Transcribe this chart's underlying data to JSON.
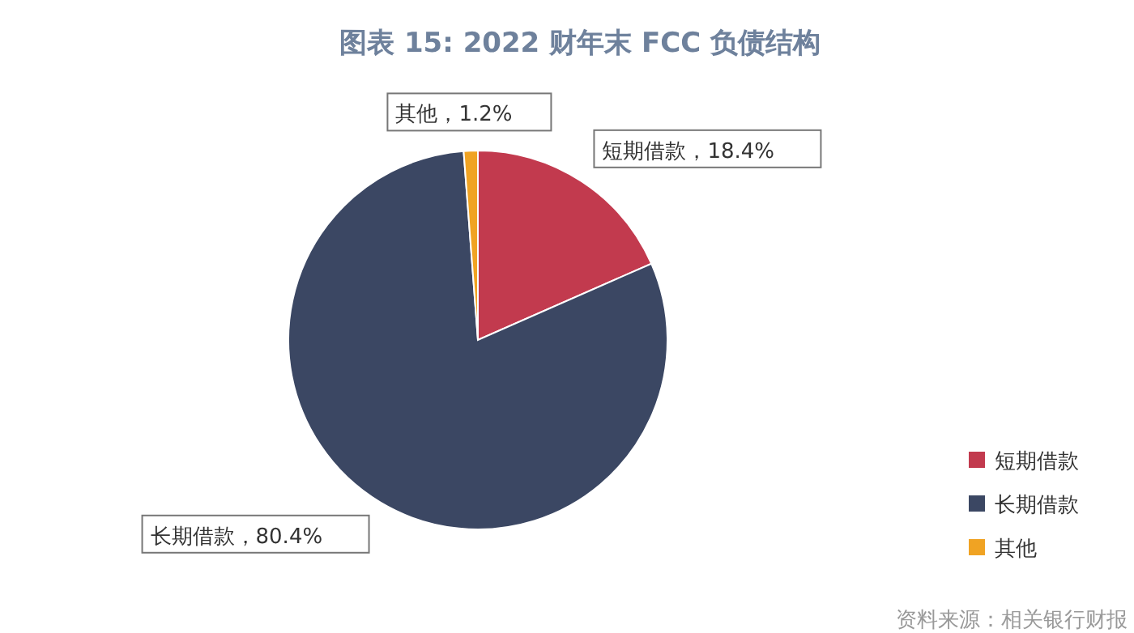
{
  "chart_data": {
    "type": "pie",
    "title": "图表 15: 2022 财年末 FCC 负债结构",
    "categories": [
      "短期借款",
      "长期借款",
      "其他"
    ],
    "values": [
      18.4,
      80.4,
      1.2
    ],
    "colors": [
      "#c23a4e",
      "#3b4763",
      "#f0a323"
    ],
    "value_labels": [
      "短期借款，18.4%",
      "长期借款，80.4%",
      "其他，1.2%"
    ],
    "legend": "bottom right",
    "annotations": [
      "资料来源：相关银行财报"
    ]
  }
}
